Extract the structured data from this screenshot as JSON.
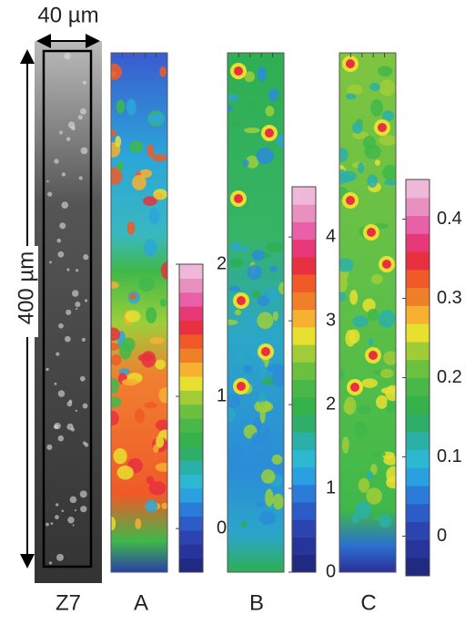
{
  "scale": {
    "width_label": "40 µm",
    "height_label": "400 µm"
  },
  "panels": [
    {
      "label": "Z7"
    },
    {
      "label": "A",
      "colorbar": {
        "lim": [
          -0.33,
          2
        ],
        "ticks": [
          0,
          1,
          2
        ]
      }
    },
    {
      "label": "B",
      "colorbar": {
        "lim": [
          0,
          4.6
        ],
        "ticks": [
          0,
          1,
          2,
          3,
          4
        ]
      }
    },
    {
      "label": "C",
      "colorbar": {
        "lim": [
          -0.05,
          0.45
        ],
        "ticks": [
          0,
          0.1,
          0.2,
          0.3,
          0.4
        ]
      }
    }
  ]
}
